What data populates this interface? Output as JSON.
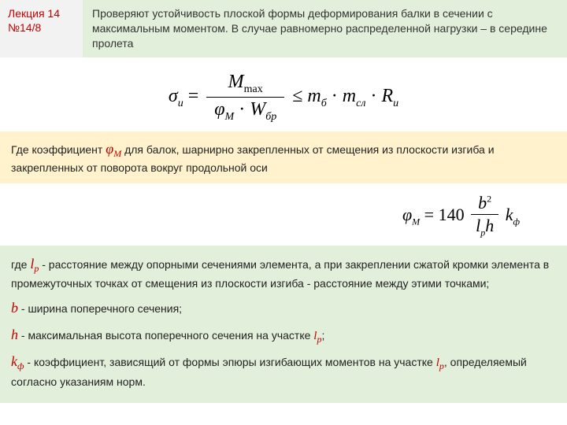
{
  "header": {
    "lecture_line1": "Лекция 14",
    "lecture_line2": "№14/8",
    "lecture_color": "#c00000",
    "header_bg": "#e2efda",
    "header_text": "Проверяют устойчивость плоской формы деформирования балки в сечении с максимальным моментом. В случае равномерно распределенной нагрузки – в середине пролета"
  },
  "formula1": {
    "sigma": "σ",
    "sigma_sub": "u",
    "eq": "=",
    "num_M": "M",
    "num_M_sub": "max",
    "den_phi": "φ",
    "den_phi_sub": "M",
    "den_dot": "·",
    "den_W": "W",
    "den_W_sub": "бр",
    "le": "≤",
    "m1": "m",
    "m1_sub": "б",
    "dot": "·",
    "m2": "m",
    "m2_sub": "сл",
    "R": "R",
    "R_sub": "u"
  },
  "yellow": {
    "bg": "#fff2cc",
    "text_before": "Где коэффициент ",
    "phi": "φ",
    "phi_sub": "M",
    "text_after": " для балок, шарнирно закрепленных от смещения из плоскости изгиба и закрепленных от поворота вокруг продольной оси"
  },
  "formula2": {
    "phi": "φ",
    "phi_sub": "M",
    "eq": "=",
    "const": "140",
    "num_b": "b",
    "num_b_sup": "2",
    "den_l": "l",
    "den_l_sub": "p",
    "den_h": "h",
    "k": "k",
    "k_sub": "ф"
  },
  "green": {
    "bg": "#e2efda",
    "lp_pre": "где ",
    "lp_var": "l",
    "lp_sub": "p",
    "lp_text": " - расстояние между опорными сечениями элемента, а при закреплении сжатой кромки элемента в промежуточных точках от смещения из плоскости изгиба - расстояние между этими точками;",
    "b_var": "b",
    "b_text": " - ширина поперечного сечения;",
    "h_var": "h",
    "h_text_before": " - максимальная высота поперечного сечения на участке ",
    "h_l": "l",
    "h_l_sub": "p",
    "h_text_after": ";",
    "kf_var": "k",
    "kf_sub": "ф",
    "kf_text_before": " - коэффициент, зависящий от формы эпюры изгибающих моментов на участке ",
    "kf_l": "l",
    "kf_l_sub": "p",
    "kf_text_after": ", определяемый согласно указаниям норм."
  }
}
